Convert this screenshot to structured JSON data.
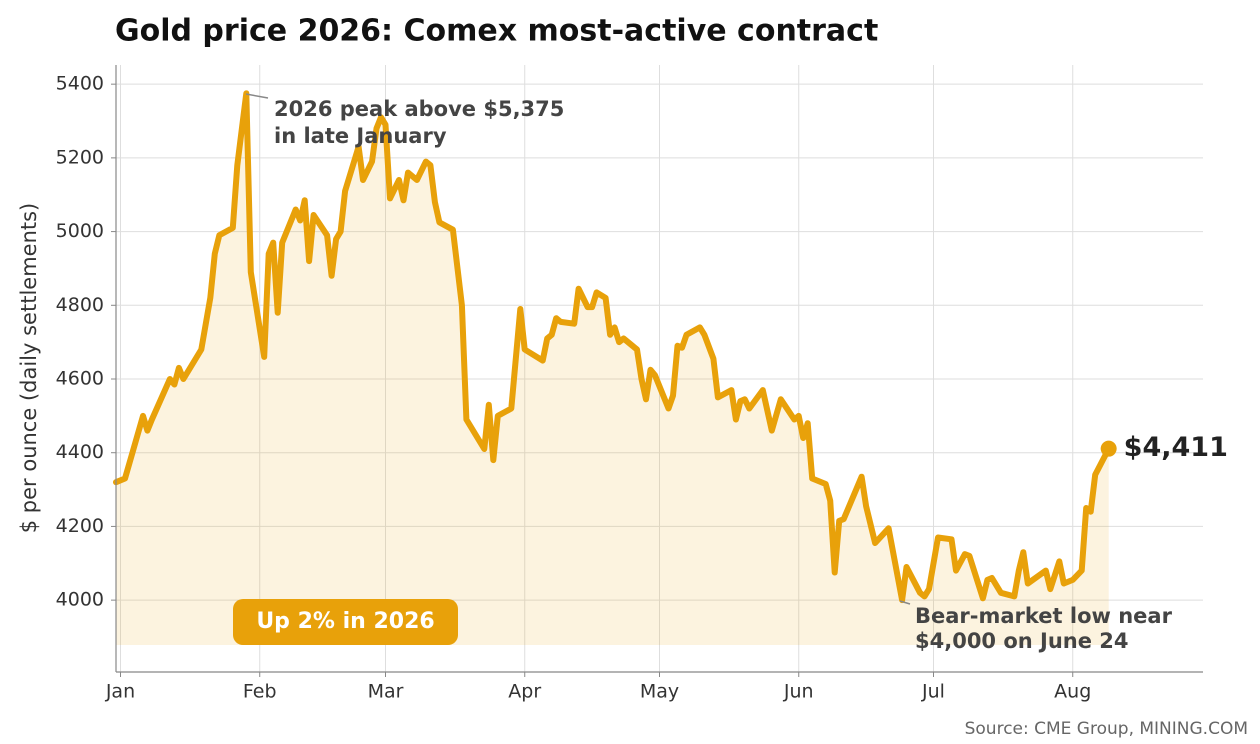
{
  "chart_data": {
    "type": "line",
    "title": "Gold price 2026: Comex most-active contract",
    "y_label": "$ per ounce (daily settlements)",
    "source": "Source: CME Group, MINING.COM",
    "color": "#e8a10a",
    "grid": true,
    "x": [
      -1,
      1,
      5,
      6,
      7,
      11,
      12,
      13,
      14,
      18,
      20,
      21,
      22,
      25,
      26,
      28,
      29,
      32,
      33,
      34,
      35,
      36,
      39,
      40,
      41,
      42,
      43,
      46,
      47,
      48,
      49,
      50,
      53,
      54,
      56,
      57,
      58,
      59,
      60,
      62,
      63,
      64,
      66,
      68,
      69,
      70,
      71,
      74,
      76,
      77,
      81,
      82,
      83,
      84,
      87,
      89,
      90,
      94,
      95,
      96,
      97,
      98,
      101,
      102,
      104,
      105,
      106,
      108,
      109,
      110,
      111,
      112,
      115,
      116,
      117,
      118,
      119,
      122,
      123,
      124,
      125,
      126,
      129,
      130,
      132,
      133,
      136,
      137,
      138,
      139,
      140,
      143,
      145,
      147,
      150,
      151,
      152,
      153,
      154,
      157,
      158,
      159,
      160,
      161,
      165,
      166,
      168,
      171,
      174,
      175,
      178,
      179,
      180,
      182,
      185,
      186,
      188,
      189,
      192,
      193,
      194,
      196,
      199,
      200,
      201,
      202,
      206,
      207,
      209,
      210,
      212,
      214,
      215,
      216,
      217,
      220
    ],
    "values": [
      4320,
      4330,
      4500,
      4460,
      4490,
      4600,
      4585,
      4630,
      4600,
      4680,
      4820,
      4940,
      4990,
      5010,
      5180,
      5375,
      4890,
      4660,
      4940,
      4970,
      4780,
      4970,
      5060,
      5030,
      5085,
      4920,
      5045,
      4990,
      4880,
      4980,
      5000,
      5110,
      5230,
      5140,
      5190,
      5280,
      5310,
      5290,
      5090,
      5140,
      5085,
      5160,
      5140,
      5190,
      5180,
      5080,
      5025,
      5005,
      4800,
      4490,
      4410,
      4530,
      4380,
      4500,
      4520,
      4790,
      4680,
      4650,
      4710,
      4720,
      4765,
      4755,
      4750,
      4845,
      4795,
      4795,
      4835,
      4820,
      4720,
      4740,
      4700,
      4710,
      4680,
      4600,
      4545,
      4625,
      4610,
      4520,
      4555,
      4690,
      4685,
      4720,
      4740,
      4720,
      4655,
      4550,
      4570,
      4490,
      4540,
      4545,
      4520,
      4570,
      4460,
      4545,
      4490,
      4500,
      4440,
      4480,
      4330,
      4315,
      4270,
      4075,
      4215,
      4220,
      4335,
      4255,
      4155,
      4195,
      4000,
      4090,
      4020,
      4010,
      4030,
      4170,
      4165,
      4080,
      4125,
      4120,
      4005,
      4055,
      4060,
      4020,
      4010,
      4080,
      4130,
      4045,
      4080,
      4030,
      4105,
      4045,
      4055,
      4080,
      4250,
      4240,
      4340,
      4411
    ],
    "end_label": "$4,411",
    "xlim": [
      -1,
      241
    ],
    "ylim": [
      3805,
      5452
    ],
    "xticks": [
      {
        "value": 0,
        "label": "Jan"
      },
      {
        "value": 31,
        "label": "Feb"
      },
      {
        "value": 59,
        "label": "Mar"
      },
      {
        "value": 90,
        "label": "Apr"
      },
      {
        "value": 120,
        "label": "May"
      },
      {
        "value": 151,
        "label": "Jun"
      },
      {
        "value": 181,
        "label": "Jul"
      },
      {
        "value": 212,
        "label": "Aug"
      }
    ],
    "yticks": [
      4000,
      4200,
      4400,
      4600,
      4800,
      5000,
      5200,
      5400
    ],
    "peak_note": [
      "2026 peak above $5,375",
      "in late January"
    ],
    "low_note": [
      "Bear-market low near",
      "$4,000 on June 24"
    ],
    "badge": "Up 2% in 2026"
  }
}
